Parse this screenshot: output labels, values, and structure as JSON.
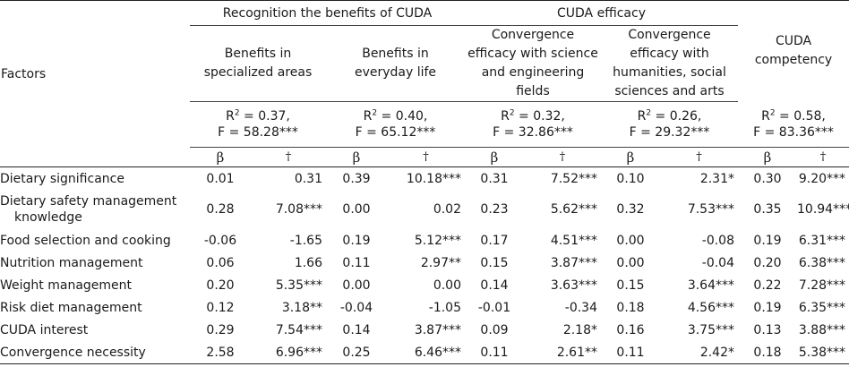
{
  "header": {
    "factors_label": "Factors",
    "group_recognition": "Recognition the benefits of CUDA",
    "group_efficacy": "CUDA efficacy",
    "sub_specialized": "Benefits in specialized areas",
    "sub_specialized_l1": "Benefits in",
    "sub_specialized_l2": "specialized areas",
    "sub_everyday_l1": "Benefits in",
    "sub_everyday_l2": "everyday life",
    "sub_science_l1": "Convergence",
    "sub_science_l2": "efficacy with science",
    "sub_science_l3": "and engineering",
    "sub_science_l4": "fields",
    "sub_humanities_l1": "Convergence",
    "sub_humanities_l2": "efficacy with",
    "sub_humanities_l3": "humanities, social",
    "sub_humanities_l4": "sciences and arts",
    "competency_l1": "CUDA",
    "competency_l2": "competency",
    "beta_symbol": "β",
    "t_symbol": "†"
  },
  "model_fit": [
    {
      "r2": "0.37,",
      "f": "F = 58.28***"
    },
    {
      "r2": "0.40,",
      "f": "F = 65.12***"
    },
    {
      "r2": "0.32,",
      "f": "F = 32.86***"
    },
    {
      "r2": "0.26,",
      "f": "F = 29.32***"
    },
    {
      "r2": "0.58,",
      "f": "F = 83.36***"
    }
  ],
  "rows": [
    {
      "factor": "Dietary significance",
      "factor_l2": "",
      "vals": [
        "0.01",
        "0.31",
        "0.39",
        "10.18***",
        "0.31",
        "7.52***",
        "0.10",
        "2.31*",
        "0.30",
        "9.20***"
      ]
    },
    {
      "factor": "Dietary safety management",
      "factor_l2": "knowledge",
      "vals": [
        "0.28",
        "7.08***",
        "0.00",
        "0.02",
        "0.23",
        "5.62***",
        "0.32",
        "7.53***",
        "0.35",
        "10.94***"
      ]
    },
    {
      "factor": "Food selection and cooking",
      "factor_l2": "",
      "vals": [
        "-0.06",
        "-1.65",
        "0.19",
        "5.12***",
        "0.17",
        "4.51***",
        "0.00",
        "-0.08",
        "0.19",
        "6.31***"
      ]
    },
    {
      "factor": "Nutrition management",
      "factor_l2": "",
      "vals": [
        "0.06",
        "1.66",
        "0.11",
        "2.97**",
        "0.15",
        "3.87***",
        "0.00",
        "-0.04",
        "0.20",
        "6.38***"
      ]
    },
    {
      "factor": "Weight management",
      "factor_l2": "",
      "vals": [
        "0.20",
        "5.35***",
        "0.00",
        "0.00",
        "0.14",
        "3.63***",
        "0.15",
        "3.64***",
        "0.22",
        "7.28***"
      ]
    },
    {
      "factor": "Risk diet management",
      "factor_l2": "",
      "vals": [
        "0.12",
        "3.18**",
        "-0.04",
        "-1.05",
        "-0.01",
        "-0.34",
        "0.18",
        "4.56***",
        "0.19",
        "6.35***"
      ]
    },
    {
      "factor": "CUDA interest",
      "factor_l2": "",
      "vals": [
        "0.29",
        "7.54***",
        "0.14",
        "3.87***",
        "0.09",
        "2.18*",
        "0.16",
        "3.75***",
        "0.13",
        "3.88***"
      ]
    },
    {
      "factor": "Convergence necessity",
      "factor_l2": "",
      "vals": [
        "2.58",
        "6.96***",
        "0.25",
        "6.46***",
        "0.11",
        "2.61**",
        "0.11",
        "2.42*",
        "0.18",
        "5.38***"
      ]
    }
  ]
}
